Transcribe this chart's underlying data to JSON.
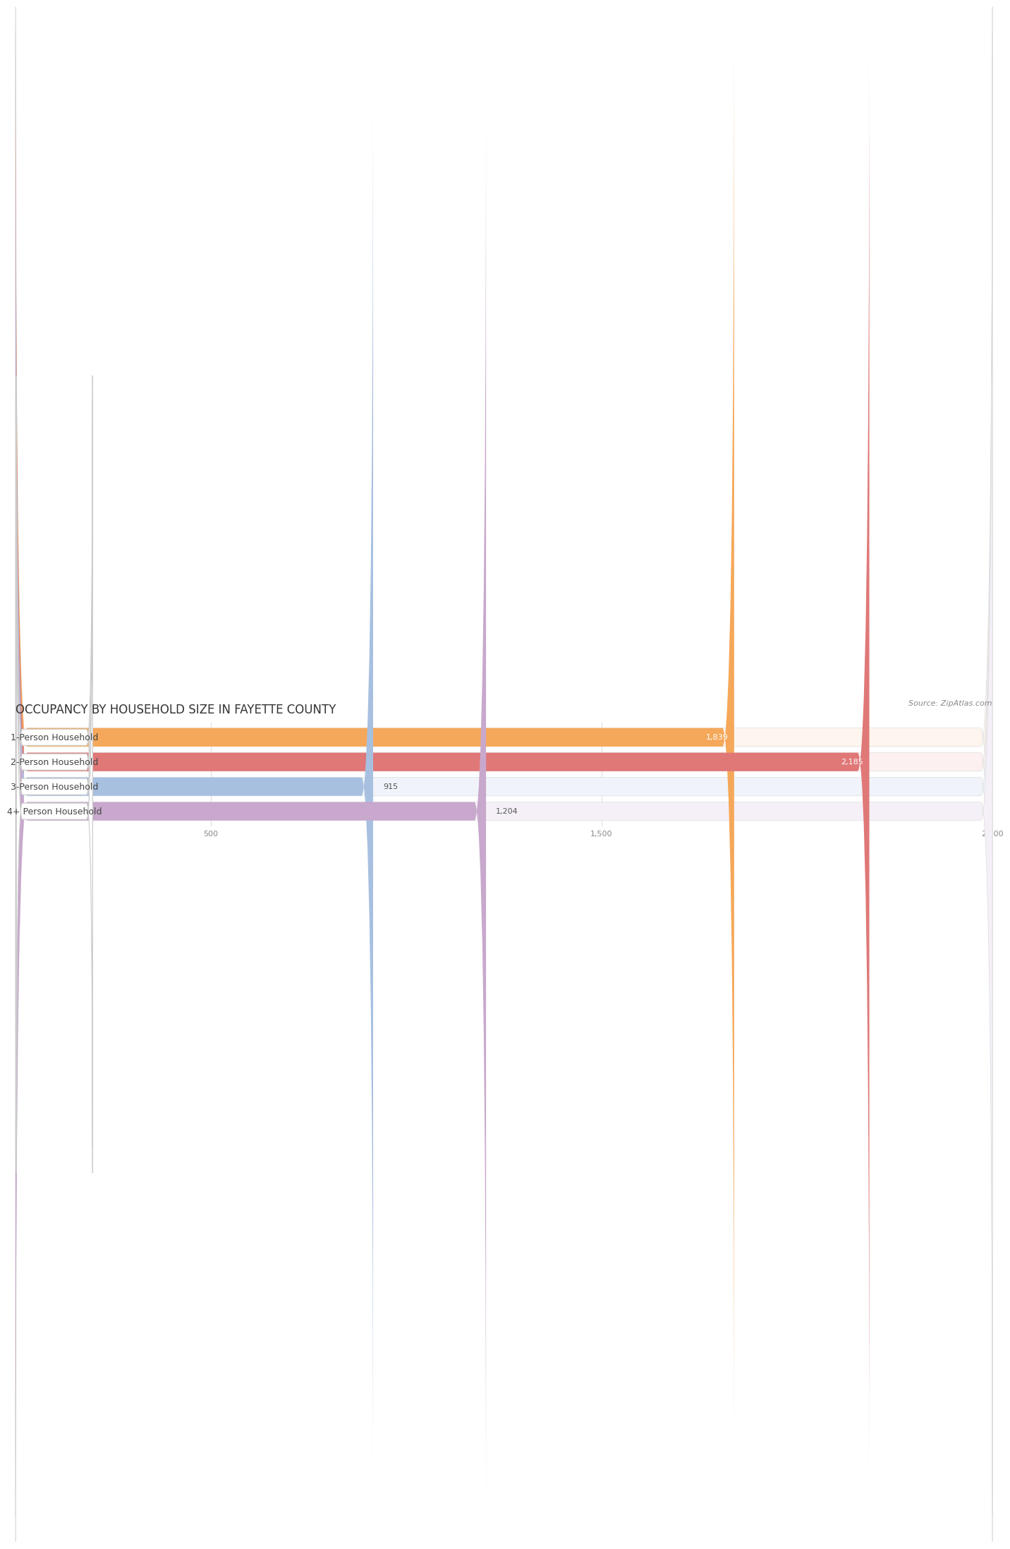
{
  "title": "OCCUPANCY BY HOUSEHOLD SIZE IN FAYETTE COUNTY",
  "source": "Source: ZipAtlas.com",
  "categories": [
    "1-Person Household",
    "2-Person Household",
    "3-Person Household",
    "4+ Person Household"
  ],
  "values": [
    1839,
    2185,
    915,
    1204
  ],
  "bar_colors": [
    "#F5A85A",
    "#E07878",
    "#A8C0E0",
    "#C8A8CC"
  ],
  "label_colors": [
    "#ffffff",
    "#ffffff",
    "#555555",
    "#555555"
  ],
  "xlim": [
    0,
    2500
  ],
  "xticks": [
    500,
    1500,
    2500
  ],
  "title_fontsize": 12,
  "source_fontsize": 8,
  "bar_label_fontsize": 8,
  "category_fontsize": 9,
  "background_color": "#ffffff",
  "bar_background_color": "#eeeeee",
  "row_bg_colors": [
    "#fdf5ee",
    "#fdf0f0",
    "#f0f4fa",
    "#f5f0f8"
  ]
}
